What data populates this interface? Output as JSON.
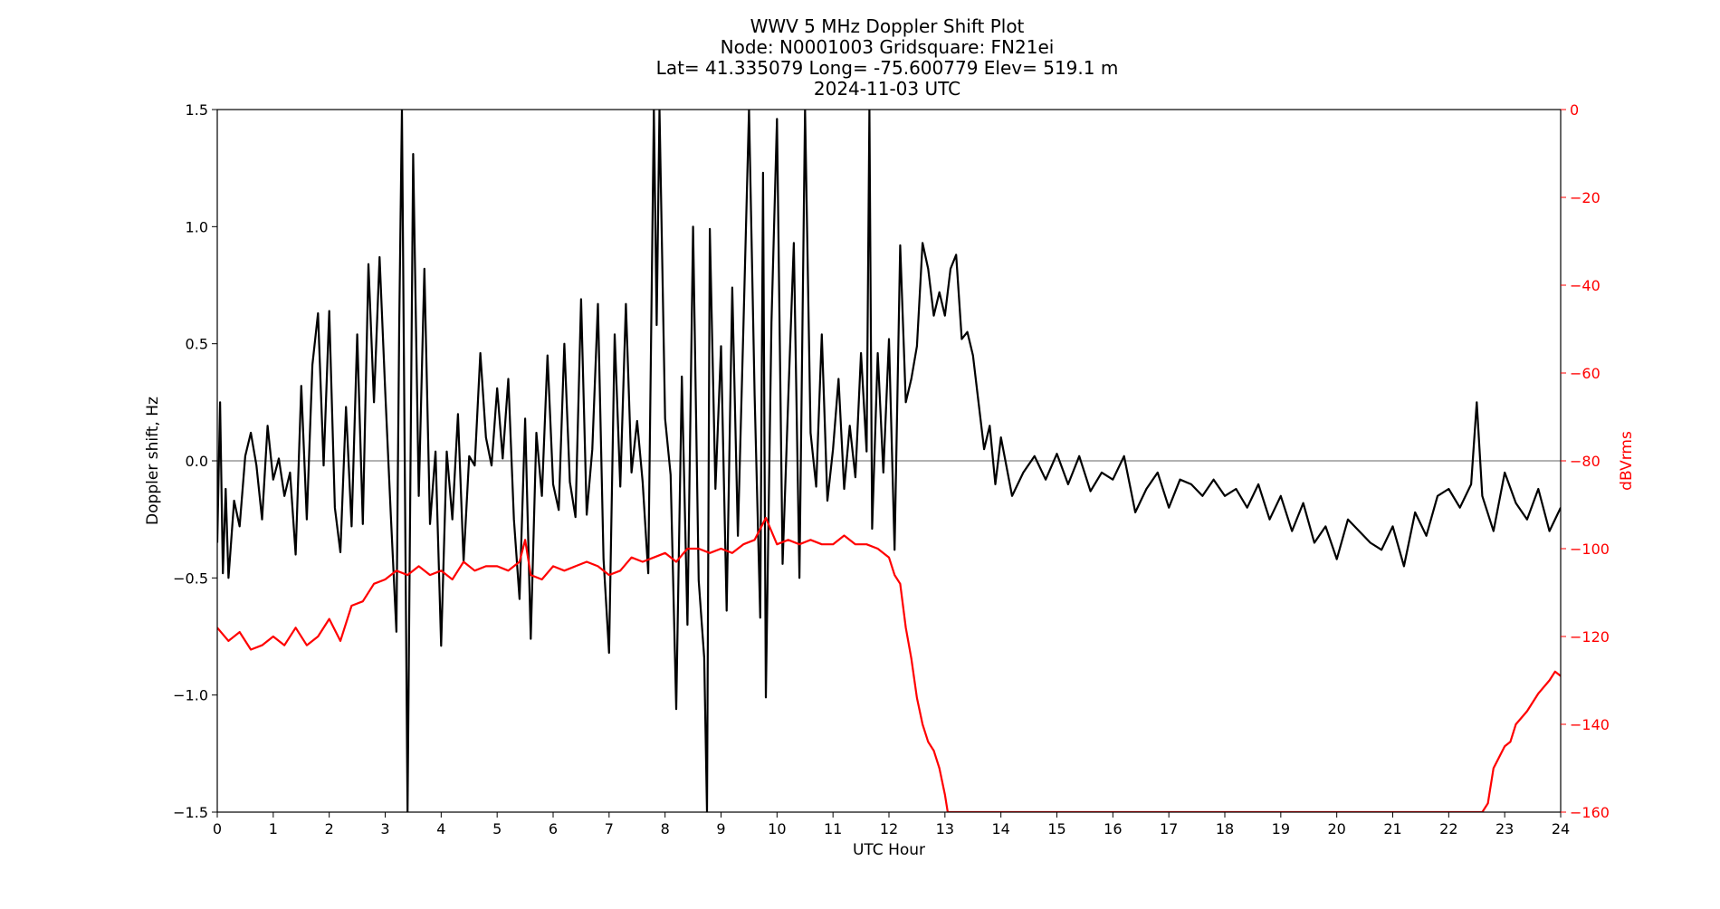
{
  "chart_data": {
    "type": "line",
    "title_lines": [
      "WWV 5 MHz Doppler Shift Plot",
      "Node:  N0001003     Gridsquare:  FN21ei",
      "Lat= 41.335079    Long= -75.600779    Elev= 519.1 m",
      "2024-11-03  UTC"
    ],
    "xlabel": "UTC Hour",
    "ylabel": "Doppler shift, Hz",
    "y2label": "dBVrms",
    "xlim": [
      0,
      24
    ],
    "ylim": [
      -1.5,
      1.5
    ],
    "y2lim": [
      -160,
      0
    ],
    "x_ticks": [
      "0",
      "1",
      "2",
      "3",
      "4",
      "5",
      "6",
      "7",
      "8",
      "9",
      "10",
      "11",
      "12",
      "13",
      "14",
      "15",
      "16",
      "17",
      "18",
      "19",
      "20",
      "21",
      "22",
      "23",
      "24"
    ],
    "y_ticks": [
      "1.5",
      "1.0",
      "0.5",
      "0.0",
      "−0.5",
      "−1.0",
      "−1.5"
    ],
    "y2_ticks": [
      "0",
      "−20",
      "−40",
      "−60",
      "−80",
      "−100",
      "−120",
      "−140",
      "−160"
    ],
    "zero_line": 0.0,
    "colors": {
      "doppler": "#000000",
      "power": "#ff0000",
      "zero_line": "#999999",
      "right_axis": "#ff0000"
    },
    "series": [
      {
        "axis": "left",
        "x": [
          0,
          0.05,
          0.1,
          0.15,
          0.2,
          0.3,
          0.4,
          0.5,
          0.6,
          0.7,
          0.8,
          0.9,
          1.0,
          1.1,
          1.2,
          1.3,
          1.4,
          1.5,
          1.6,
          1.7,
          1.8,
          1.9,
          2.0,
          2.1,
          2.2,
          2.3,
          2.4,
          2.5,
          2.6,
          2.7,
          2.8,
          2.9,
          3.0,
          3.1,
          3.2,
          3.25,
          3.3,
          3.4,
          3.5,
          3.6,
          3.7,
          3.8,
          3.9,
          4.0,
          4.1,
          4.2,
          4.3,
          4.4,
          4.5,
          4.6,
          4.7,
          4.8,
          4.9,
          5.0,
          5.1,
          5.2,
          5.3,
          5.4,
          5.5,
          5.6,
          5.7,
          5.8,
          5.9,
          6.0,
          6.1,
          6.2,
          6.3,
          6.4,
          6.5,
          6.6,
          6.7,
          6.8,
          6.9,
          7.0,
          7.1,
          7.2,
          7.3,
          7.4,
          7.5,
          7.6,
          7.7,
          7.8,
          7.85,
          7.9,
          8.0,
          8.1,
          8.2,
          8.3,
          8.4,
          8.5,
          8.6,
          8.7,
          8.75,
          8.8,
          8.9,
          9.0,
          9.1,
          9.2,
          9.3,
          9.4,
          9.5,
          9.6,
          9.7,
          9.75,
          9.8,
          9.9,
          10.0,
          10.1,
          10.2,
          10.3,
          10.4,
          10.5,
          10.6,
          10.7,
          10.8,
          10.9,
          11.0,
          11.1,
          11.2,
          11.3,
          11.4,
          11.5,
          11.6,
          11.65,
          11.7,
          11.8,
          11.9,
          12.0,
          12.1,
          12.2,
          12.3,
          12.4,
          12.5,
          12.6,
          12.7,
          12.8,
          12.9,
          13.0,
          13.1,
          13.2,
          13.3,
          13.4,
          13.5,
          13.6,
          13.7,
          13.8,
          13.9,
          14.0,
          14.2,
          14.4,
          14.6,
          14.8,
          15.0,
          15.2,
          15.4,
          15.6,
          15.8,
          16.0,
          16.2,
          16.4,
          16.6,
          16.8,
          17.0,
          17.2,
          17.4,
          17.6,
          17.8,
          18.0,
          18.2,
          18.4,
          18.6,
          18.8,
          19.0,
          19.2,
          19.4,
          19.6,
          19.8,
          20.0,
          20.2,
          20.4,
          20.6,
          20.8,
          21.0,
          21.2,
          21.4,
          21.6,
          21.8,
          22.0,
          22.2,
          22.4,
          22.5,
          22.6,
          22.8,
          23.0,
          23.2,
          23.4,
          23.6,
          23.8,
          24.0
        ],
        "y": [
          -0.35,
          0.25,
          -0.48,
          -0.12,
          -0.5,
          -0.17,
          -0.28,
          0.02,
          0.12,
          -0.02,
          -0.25,
          0.15,
          -0.08,
          0.01,
          -0.15,
          -0.05,
          -0.4,
          0.32,
          -0.25,
          0.41,
          0.63,
          -0.02,
          0.64,
          -0.2,
          -0.39,
          0.23,
          -0.28,
          0.54,
          -0.27,
          0.84,
          0.25,
          0.87,
          0.3,
          -0.23,
          -0.73,
          0.58,
          1.5,
          -1.5,
          1.31,
          -0.15,
          0.82,
          -0.27,
          0.04,
          -0.79,
          0.04,
          -0.25,
          0.2,
          -0.43,
          0.02,
          -0.02,
          0.46,
          0.1,
          -0.02,
          0.31,
          0.01,
          0.35,
          -0.25,
          -0.59,
          0.18,
          -0.76,
          0.12,
          -0.15,
          0.45,
          -0.1,
          -0.21,
          0.5,
          -0.09,
          -0.24,
          0.69,
          -0.23,
          0.05,
          0.67,
          -0.42,
          -0.82,
          0.54,
          -0.11,
          0.67,
          -0.05,
          0.17,
          -0.09,
          -0.48,
          1.5,
          0.58,
          1.5,
          0.18,
          -0.06,
          -1.06,
          0.36,
          -0.7,
          1.0,
          -0.51,
          -0.84,
          -1.5,
          0.99,
          -0.12,
          0.49,
          -0.64,
          0.74,
          -0.32,
          0.57,
          1.5,
          0.28,
          -0.67,
          1.23,
          -1.01,
          0.59,
          1.46,
          -0.44,
          0.26,
          0.93,
          -0.5,
          1.5,
          0.12,
          -0.11,
          0.54,
          -0.17,
          0.05,
          0.35,
          -0.12,
          0.15,
          -0.07,
          0.46,
          0.04,
          1.5,
          -0.29,
          0.46,
          -0.05,
          0.52,
          -0.38,
          0.92,
          0.25,
          0.35,
          0.49,
          0.93,
          0.82,
          0.62,
          0.72,
          0.62,
          0.82,
          0.88,
          0.52,
          0.55,
          0.45,
          0.25,
          0.05,
          0.15,
          -0.1,
          0.1,
          -0.15,
          -0.05,
          0.02,
          -0.08,
          0.03,
          -0.1,
          0.02,
          -0.13,
          -0.05,
          -0.08,
          0.02,
          -0.22,
          -0.12,
          -0.05,
          -0.2,
          -0.08,
          -0.1,
          -0.15,
          -0.08,
          -0.15,
          -0.12,
          -0.2,
          -0.1,
          -0.25,
          -0.15,
          -0.3,
          -0.18,
          -0.35,
          -0.28,
          -0.42,
          -0.25,
          -0.3,
          -0.35,
          -0.38,
          -0.28,
          -0.45,
          -0.22,
          -0.32,
          -0.15,
          -0.12,
          -0.2,
          -0.1,
          0.25,
          -0.15,
          -0.3,
          -0.05,
          -0.18,
          -0.25,
          -0.12,
          -0.3,
          -0.2
        ]
      },
      {
        "axis": "right",
        "x": [
          0,
          0.2,
          0.4,
          0.6,
          0.8,
          1.0,
          1.2,
          1.4,
          1.6,
          1.8,
          2.0,
          2.2,
          2.4,
          2.6,
          2.8,
          3.0,
          3.2,
          3.4,
          3.6,
          3.8,
          4.0,
          4.2,
          4.4,
          4.6,
          4.8,
          5.0,
          5.2,
          5.4,
          5.5,
          5.6,
          5.8,
          6.0,
          6.2,
          6.4,
          6.6,
          6.8,
          7.0,
          7.2,
          7.4,
          7.6,
          7.8,
          8.0,
          8.2,
          8.4,
          8.6,
          8.8,
          9.0,
          9.2,
          9.4,
          9.6,
          9.8,
          10.0,
          10.2,
          10.4,
          10.6,
          10.8,
          11.0,
          11.2,
          11.4,
          11.6,
          11.8,
          12.0,
          12.1,
          12.2,
          12.3,
          12.4,
          12.5,
          12.6,
          12.7,
          12.8,
          12.9,
          13.0,
          13.05,
          22.6,
          22.7,
          22.8,
          23.0,
          23.1,
          23.2,
          23.4,
          23.6,
          23.8,
          23.9,
          24.0
        ],
        "y": [
          -118,
          -121,
          -119,
          -123,
          -122,
          -120,
          -122,
          -118,
          -122,
          -120,
          -116,
          -121,
          -113,
          -112,
          -108,
          -107,
          -105,
          -106,
          -104,
          -106,
          -105,
          -107,
          -103,
          -105,
          -104,
          -104,
          -105,
          -103,
          -98,
          -106,
          -107,
          -104,
          -105,
          -104,
          -103,
          -104,
          -106,
          -105,
          -102,
          -103,
          -102,
          -101,
          -103,
          -100,
          -100,
          -101,
          -100,
          -101,
          -99,
          -98,
          -93,
          -99,
          -98,
          -99,
          -98,
          -99,
          -99,
          -97,
          -99,
          -99,
          -100,
          -102,
          -106,
          -108,
          -118,
          -125,
          -134,
          -140,
          -144,
          -146,
          -150,
          -156,
          -160,
          -160,
          -158,
          -150,
          -145,
          -144,
          -140,
          -137,
          -133,
          -130,
          -128,
          -129
        ]
      }
    ]
  }
}
